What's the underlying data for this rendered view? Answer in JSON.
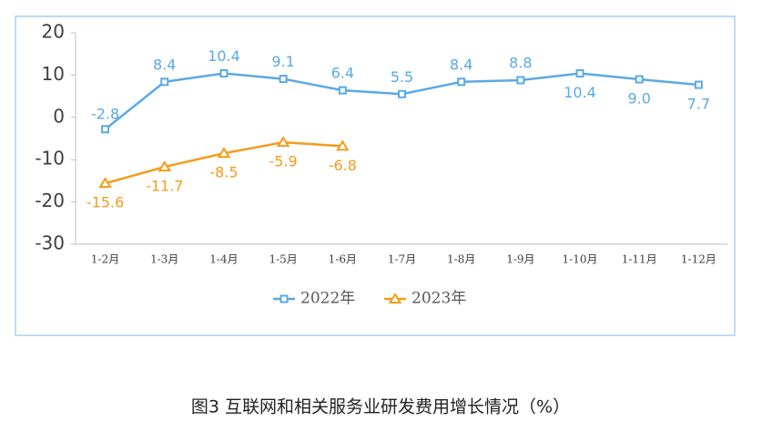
{
  "chart_data": {
    "type": "line",
    "title": "图3  互联网和相关服务业研发费用增长情况（%）",
    "categories": [
      "1-2月",
      "1-3月",
      "1-4月",
      "1-5月",
      "1-6月",
      "1-7月",
      "1-8月",
      "1-9月",
      "1-10月",
      "1-11月",
      "1-12月"
    ],
    "series": [
      {
        "name": "2022年",
        "color": "#5aa9e6",
        "marker": "square",
        "values": [
          -2.8,
          8.4,
          10.4,
          9.1,
          6.4,
          5.5,
          8.4,
          8.8,
          10.4,
          9.0,
          7.7
        ],
        "value_labels": [
          "-2.8",
          "8.4",
          "10.4",
          "9.1",
          "6.4",
          "5.5",
          "8.4",
          "8.8",
          "10.4",
          "9.0",
          "7.7"
        ]
      },
      {
        "name": "2023年",
        "color": "#f59c1a",
        "marker": "triangle",
        "values": [
          -15.6,
          -11.7,
          -8.5,
          -5.9,
          -6.8,
          null,
          null,
          null,
          null,
          null,
          null
        ]
      }
    ],
    "ylim": [
      -30,
      20
    ],
    "yticks": [
      -30,
      -20,
      -10,
      0,
      10,
      20
    ],
    "grid": false,
    "legend": "bottom"
  }
}
